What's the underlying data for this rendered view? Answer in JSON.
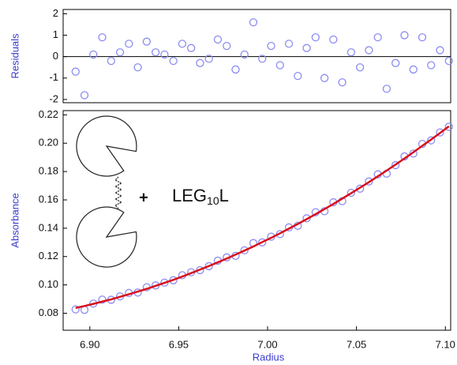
{
  "chart_data": [
    {
      "type": "scatter",
      "y_label": "Residuals",
      "x": [
        6.892,
        6.897,
        6.902,
        6.907,
        6.912,
        6.917,
        6.922,
        6.927,
        6.932,
        6.937,
        6.942,
        6.947,
        6.952,
        6.957,
        6.962,
        6.967,
        6.972,
        6.977,
        6.982,
        6.987,
        6.992,
        6.997,
        7.002,
        7.007,
        7.012,
        7.017,
        7.022,
        7.027,
        7.032,
        7.037,
        7.042,
        7.047,
        7.052,
        7.057,
        7.062,
        7.067,
        7.072,
        7.077,
        7.082,
        7.087,
        7.092,
        7.097,
        7.102
      ],
      "series": [
        {
          "color": "#8c8cf0",
          "values": [
            -0.7,
            -1.8,
            0.1,
            0.9,
            -0.2,
            0.2,
            0.6,
            -0.5,
            0.7,
            0.2,
            0.1,
            -0.2,
            0.6,
            0.4,
            -0.3,
            -0.1,
            0.8,
            0.5,
            -0.6,
            0.1,
            1.6,
            -0.1,
            0.5,
            -0.4,
            0.6,
            -0.9,
            0.4,
            0.9,
            -1.0,
            0.8,
            -1.2,
            0.2,
            -0.5,
            0.3,
            0.9,
            -1.5,
            -0.3,
            1.0,
            -0.6,
            0.9,
            -0.4,
            0.3,
            -0.2
          ]
        }
      ],
      "xlim": [
        6.885,
        7.103
      ],
      "ylim": [
        -2.15,
        2.2
      ],
      "yticks": [
        2,
        1,
        0,
        -1,
        -2
      ],
      "zero_line": true
    },
    {
      "type": "scatter",
      "x_label": "Radius",
      "y_label": "Absorbance",
      "annotation": {
        "base": "LEG",
        "subscript": "10",
        "suffix": "L"
      },
      "x": [
        6.892,
        6.897,
        6.902,
        6.907,
        6.912,
        6.917,
        6.922,
        6.927,
        6.932,
        6.937,
        6.942,
        6.947,
        6.952,
        6.957,
        6.962,
        6.967,
        6.972,
        6.977,
        6.982,
        6.987,
        6.992,
        6.997,
        7.002,
        7.007,
        7.012,
        7.017,
        7.022,
        7.027,
        7.032,
        7.037,
        7.042,
        7.047,
        7.052,
        7.057,
        7.062,
        7.067,
        7.072,
        7.077,
        7.082,
        7.087,
        7.092,
        7.097,
        7.102
      ],
      "series": [
        {
          "type": "scatter",
          "color": "#8c8cf0",
          "values": [
            0.0827,
            0.0824,
            0.0868,
            0.0896,
            0.0895,
            0.0919,
            0.0943,
            0.0946,
            0.0983,
            0.0996,
            0.1016,
            0.1033,
            0.1068,
            0.1089,
            0.1104,
            0.1132,
            0.1171,
            0.1194,
            0.1205,
            0.1244,
            0.1295,
            0.13,
            0.134,
            0.1358,
            0.1406,
            0.1417,
            0.147,
            0.1513,
            0.152,
            0.1583,
            0.1591,
            0.165,
            0.1679,
            0.173,
            0.178,
            0.1785,
            0.1845,
            0.1907,
            0.1927,
            0.1995,
            0.202,
            0.2076,
            0.2116
          ]
        },
        {
          "type": "line",
          "color": "#d8101c",
          "values": [
            0.0837,
            0.0851,
            0.0866,
            0.0882,
            0.0898,
            0.0916,
            0.0934,
            0.0953,
            0.0972,
            0.0993,
            0.1014,
            0.1036,
            0.1059,
            0.1083,
            0.1108,
            0.1133,
            0.1159,
            0.1186,
            0.1214,
            0.1242,
            0.1271,
            0.1302,
            0.1332,
            0.1364,
            0.1397,
            0.143,
            0.1464,
            0.1499,
            0.1535,
            0.1571,
            0.1609,
            0.1647,
            0.1686,
            0.1725,
            0.1766,
            0.1807,
            0.1849,
            0.1892,
            0.1936,
            0.1981,
            0.2026,
            0.2072,
            0.2119
          ]
        }
      ],
      "xlim": [
        6.885,
        7.103
      ],
      "ylim": [
        0.068,
        0.223
      ],
      "xticks": [
        {
          "value": 6.9,
          "label": "6.90"
        },
        6.95,
        {
          "value": 7,
          "label": "7.00"
        },
        7.05,
        {
          "value": 7.1,
          "label": "7.10"
        }
      ],
      "yticks": [
        0.08,
        {
          "value": 0.1,
          "label": "0.10"
        },
        0.12,
        0.14,
        0.16,
        0.18,
        {
          "value": 0.2,
          "label": "0.20"
        },
        0.22
      ]
    }
  ]
}
